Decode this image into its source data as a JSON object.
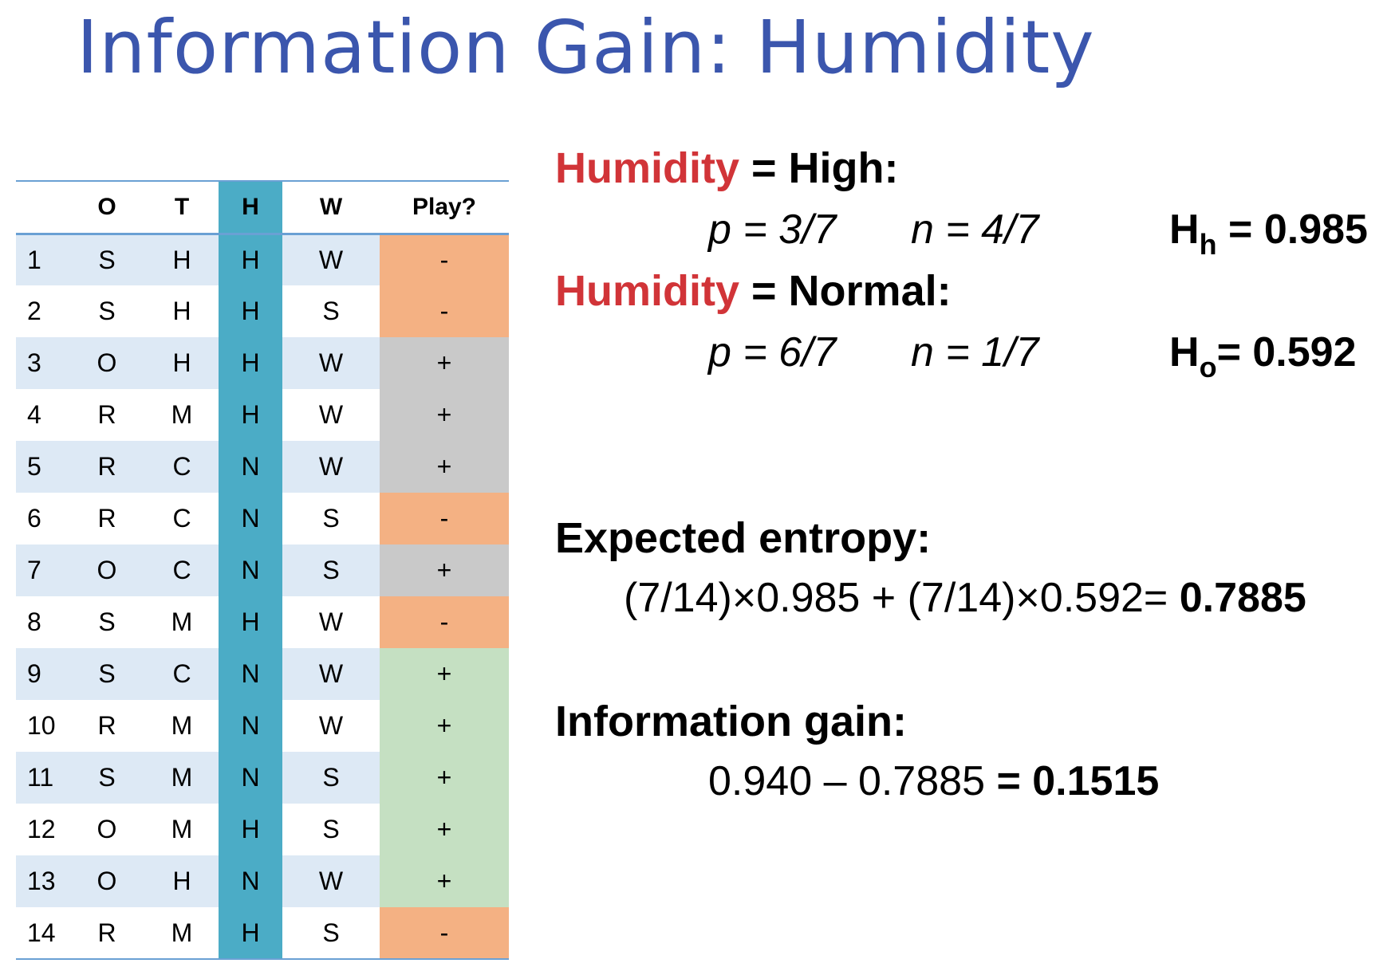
{
  "title": "Information Gain: Humidity",
  "table": {
    "headers": [
      "",
      "O",
      "T",
      "H",
      "W",
      "Play?"
    ],
    "rows": [
      {
        "n": "1",
        "o": "S",
        "t": "H",
        "h": "H",
        "w": "W",
        "play": "-"
      },
      {
        "n": "2",
        "o": "S",
        "t": "H",
        "h": "H",
        "w": "S",
        "play": "-"
      },
      {
        "n": "3",
        "o": "O",
        "t": "H",
        "h": "H",
        "w": "W",
        "play": "+"
      },
      {
        "n": "4",
        "o": "R",
        "t": "M",
        "h": "H",
        "w": "W",
        "play": "+"
      },
      {
        "n": "5",
        "o": "R",
        "t": "C",
        "h": "N",
        "w": "W",
        "play": "+"
      },
      {
        "n": "6",
        "o": "R",
        "t": "C",
        "h": "N",
        "w": "S",
        "play": "-"
      },
      {
        "n": "7",
        "o": "O",
        "t": "C",
        "h": "N",
        "w": "S",
        "play": "+"
      },
      {
        "n": "8",
        "o": "S",
        "t": "M",
        "h": "H",
        "w": "W",
        "play": "-"
      },
      {
        "n": "9",
        "o": "S",
        "t": "C",
        "h": "N",
        "w": "W",
        "play": "+"
      },
      {
        "n": "10",
        "o": "R",
        "t": "M",
        "h": "N",
        "w": "W",
        "play": "+"
      },
      {
        "n": "11",
        "o": "S",
        "t": "M",
        "h": "N",
        "w": "S",
        "play": "+"
      },
      {
        "n": "12",
        "o": "O",
        "t": "M",
        "h": "H",
        "w": "S",
        "play": "+"
      },
      {
        "n": "13",
        "o": "O",
        "t": "H",
        "h": "N",
        "w": "W",
        "play": "+"
      },
      {
        "n": "14",
        "o": "R",
        "t": "M",
        "h": "H",
        "w": "S",
        "play": "-"
      }
    ],
    "play_colors": [
      "neg",
      "neg",
      "gray",
      "gray",
      "gray",
      "neg",
      "gray",
      "neg",
      "green",
      "green",
      "green",
      "green",
      "green",
      "neg"
    ],
    "colors": {
      "neg": "#f4b183",
      "gray": "#c9c9c9",
      "green": "#c5e0c2",
      "h_column": "#4bacc6"
    }
  },
  "high": {
    "attr": "Humidity",
    "rest": " = High:",
    "p": "p = 3/7",
    "n": "n = 4/7",
    "h_label": "H",
    "h_sub": "h",
    "h_value": " = 0.985"
  },
  "normal": {
    "attr": "Humidity",
    "rest": " = Normal:",
    "p": "p = 6/7",
    "n": "n = 1/7",
    "h_label": "H",
    "h_sub": "o",
    "h_value": "= 0.592"
  },
  "expected": {
    "heading": "Expected entropy:",
    "formula": "(7/14)×0.985 + (7/14)×0.592= ",
    "result": "0.7885"
  },
  "gain": {
    "heading": "Information gain:",
    "formula": "0.940 – 0.7885 ",
    "result": "= 0.1515"
  }
}
